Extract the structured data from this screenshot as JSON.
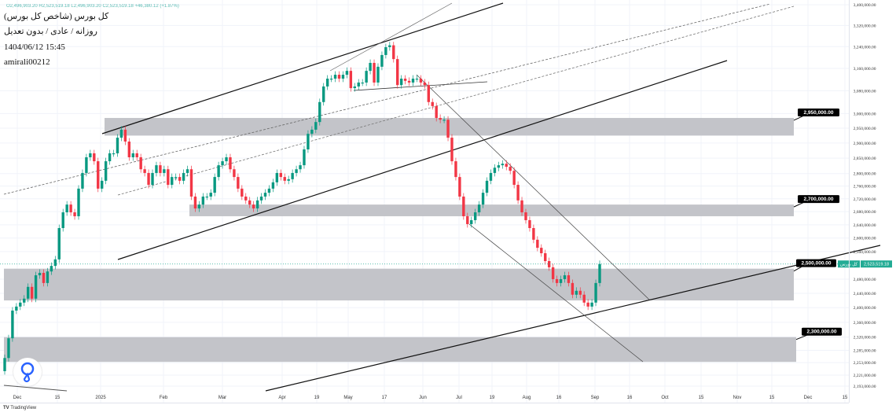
{
  "header": {
    "ohlc_line": "O2,496,903.20 H2,523,519.18 L2,496,903.20 C2,523,519.18 +46,380.12 (+1.87%)",
    "symbol": "کل بورس (شاخص کل بورس)",
    "interval": "روزانه / عادی / بدون تعدیل",
    "datetime": "1404/06/12 15:45",
    "author": "amirali00212"
  },
  "footer": {
    "brand": "TradingView"
  },
  "colors": {
    "up": "#089981",
    "down": "#f23645",
    "zone": "#c0c1c6",
    "callout": "#000000",
    "last_price": "#22ab94"
  },
  "chart_data": {
    "type": "candlestick",
    "scale": "log",
    "ylim": [
      2193000,
      3400000
    ],
    "unit_multiplier": 1000,
    "closes": [
      2265,
      2317,
      2392,
      2403,
      2414,
      2425,
      2458,
      2425,
      2491,
      2498,
      2469,
      2502,
      2518,
      2537,
      2630,
      2678,
      2702,
      2678,
      2666,
      2752,
      2802,
      2853,
      2866,
      2840,
      2752,
      2777,
      2840,
      2866,
      2866,
      2918,
      2945,
      2905,
      2853,
      2866,
      2853,
      2814,
      2802,
      2764,
      2802,
      2827,
      2802,
      2814,
      2764,
      2789,
      2789,
      2777,
      2802,
      2814,
      2727,
      2690,
      2702,
      2727,
      2727,
      2739,
      2789,
      2827,
      2840,
      2853,
      2814,
      2789,
      2752,
      2727,
      2715,
      2702,
      2690,
      2715,
      2727,
      2739,
      2752,
      2772,
      2802,
      2789,
      2777,
      2782,
      2802,
      2814,
      2827,
      2879,
      2931,
      2945,
      2971,
      3040,
      3095,
      3123,
      3123,
      3137,
      3123,
      3137,
      3151,
      3089,
      3095,
      3109,
      3109,
      3151,
      3180,
      3109,
      3166,
      3209,
      3238,
      3245,
      3194,
      3100,
      3123,
      3115,
      3109,
      3123,
      3123,
      3109,
      3100,
      3040,
      3026,
      2985,
      2979,
      2979,
      2918,
      2840,
      2789,
      2727,
      2666,
      2642,
      2654,
      2678,
      2702,
      2739,
      2777,
      2802,
      2819,
      2827,
      2832,
      2822,
      2809,
      2764,
      2715,
      2678,
      2654,
      2630,
      2595,
      2571,
      2555,
      2532,
      2514,
      2480,
      2469,
      2480,
      2491,
      2469,
      2436,
      2447,
      2436,
      2414,
      2403,
      2414,
      2469,
      2523.519
    ],
    "y_tick_labels": [
      "3,400,000.00",
      "3,320,000.00",
      "3,240,000.00",
      "3,160,000.00",
      "3,080,000.00",
      "3,000,000.00",
      "2,950,000.00",
      "2,900,000.00",
      "2,850,000.00",
      "2,800,000.00",
      "2,760,000.00",
      "2,720,000.00",
      "2,680,000.00",
      "2,640,000.00",
      "2,600,000.00",
      "2,560,000.00",
      "2,480,000.00",
      "2,440,000.00",
      "2,400,000.00",
      "2,360,000.00",
      "2,320,000.00",
      "2,285,000.00",
      "2,253,000.00",
      "2,221,000.00",
      "2,193,000.00"
    ],
    "y_tick_values": [
      3400000,
      3320000,
      3240000,
      3160000,
      3080000,
      3000000,
      2950000,
      2900000,
      2850000,
      2800000,
      2760000,
      2720000,
      2680000,
      2640000,
      2600000,
      2560000,
      2480000,
      2440000,
      2400000,
      2360000,
      2320000,
      2285000,
      2253000,
      2221000,
      2193000
    ],
    "x_tick_labels": [
      "Dec",
      "15",
      "2025",
      "Feb",
      "Mar",
      "Apr",
      "19",
      "May",
      "17",
      "Jun",
      "Jul",
      "19",
      "Aug",
      "16",
      "Sep",
      "16",
      "Oct",
      "15",
      "Nov",
      "15",
      "Dec",
      "15"
    ],
    "zones": [
      {
        "label": "2,950,000.00",
        "low": 2925000,
        "high": 2985000
      },
      {
        "label": "2,700,000.00",
        "low": 2666000,
        "high": 2702000
      },
      {
        "label": "2,500,000.00",
        "low": 2420000,
        "high": 2510000
      },
      {
        "label": "2,300,000.00",
        "low": 2255000,
        "high": 2320000
      }
    ],
    "last_price": {
      "name": "کل بورس",
      "value": "2,523,519.18",
      "price": 2523519.18
    }
  }
}
